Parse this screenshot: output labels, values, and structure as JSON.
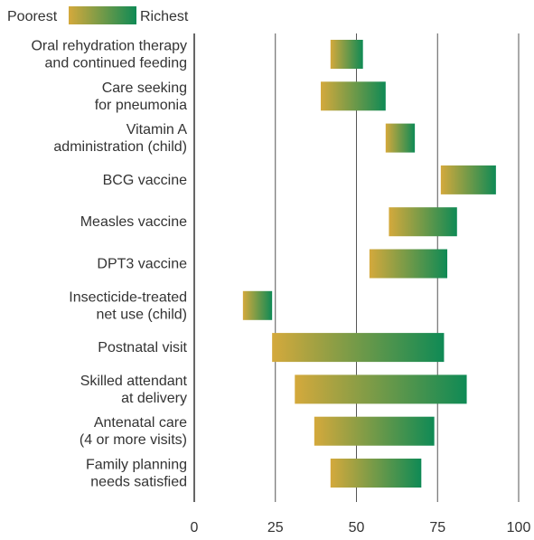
{
  "chart_data": {
    "type": "bar",
    "subtype": "range",
    "legend": {
      "low_label": "Poorest",
      "high_label": "Richest",
      "placement": "top-left"
    },
    "colors": {
      "low": "#d4a93c",
      "high": "#0f8a55"
    },
    "xlim": [
      0,
      100
    ],
    "x_ticks": [
      0,
      25,
      50,
      75,
      100
    ],
    "x_tick_labels": [
      "0",
      "25",
      "50",
      "75",
      "100"
    ],
    "grid": true,
    "categories": [
      {
        "lines": [
          "Oral rehydration therapy",
          "and continued feeding"
        ]
      },
      {
        "lines": [
          "Care seeking",
          "for pneumonia"
        ]
      },
      {
        "lines": [
          "Vitamin A",
          "administration (child)"
        ]
      },
      {
        "lines": [
          "BCG vaccine"
        ]
      },
      {
        "lines": [
          "Measles vaccine"
        ]
      },
      {
        "lines": [
          "DPT3 vaccine"
        ]
      },
      {
        "lines": [
          "Insecticide-treated",
          "net use (child)"
        ]
      },
      {
        "lines": [
          "Postnatal visit"
        ]
      },
      {
        "lines": [
          "Skilled attendant",
          "at delivery"
        ]
      },
      {
        "lines": [
          "Antenatal care",
          "(4 or more visits)"
        ]
      },
      {
        "lines": [
          "Family planning",
          "needs satisfied"
        ]
      }
    ],
    "series": [
      {
        "name": "Poorest",
        "values": [
          42,
          39,
          59,
          76,
          60,
          54,
          15,
          24,
          31,
          37,
          42
        ]
      },
      {
        "name": "Richest",
        "values": [
          52,
          59,
          68,
          93,
          81,
          78,
          24,
          77,
          84,
          74,
          70
        ]
      }
    ]
  }
}
